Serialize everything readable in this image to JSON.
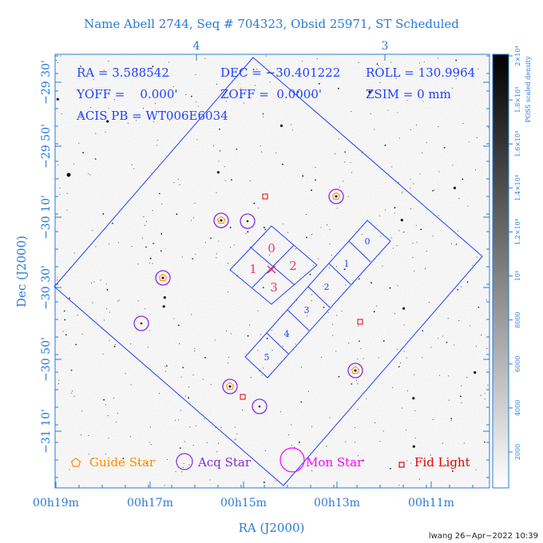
{
  "title": "Name Abell 2744, Seq # 704323, Obsid 25971, ST Scheduled",
  "params": {
    "line1": [
      "RA = 3.588542",
      "DEC = −30.401222",
      "ROLL = 130.9964"
    ],
    "line2": [
      "YOFF =    0.000'",
      "ZOFF =  0.0000'",
      "ZSIM = 0 mm"
    ],
    "line3": "ACIS PB = WT006E6034"
  },
  "axes": {
    "xlabel": "RA (J2000)",
    "ylabel": "Dec (J2000)",
    "x_ticks": [
      "00h19m",
      "00h17m",
      "00h15m",
      "00h13m",
      "00h11m"
    ],
    "y_ticks": [
      "−29 30'",
      "−29 50'",
      "−30 10'",
      "−30 30'",
      "−30 50'",
      "−31 10'"
    ],
    "top_ticks": [
      "4",
      "3"
    ]
  },
  "colorbar": {
    "label": "POSS scaled density",
    "ticks": [
      "2000",
      "4000",
      "6000",
      "8000",
      "10⁴",
      "1.2×10⁴",
      "1.4×10⁴",
      "1.6×10⁴",
      "1.8×10⁴",
      "2×10⁴"
    ]
  },
  "ccd_labels": {
    "i": [
      "0",
      "1",
      "2",
      "3"
    ],
    "s": [
      "0",
      "1",
      "2",
      "3",
      "4",
      "5"
    ]
  },
  "legend": {
    "guide": "Guide Star",
    "acq": "Acq Star",
    "mon": "Mon Star",
    "fid": "Fid Light"
  },
  "colors": {
    "field": "#1f3fff",
    "guide": "#ff8c00",
    "acq": "#8a2be2",
    "mon": "#ff00ff",
    "fid": "#e00000",
    "i_labels": "#ff2a6a"
  },
  "credit": "lwang 26−Apr−2022 10:39"
}
